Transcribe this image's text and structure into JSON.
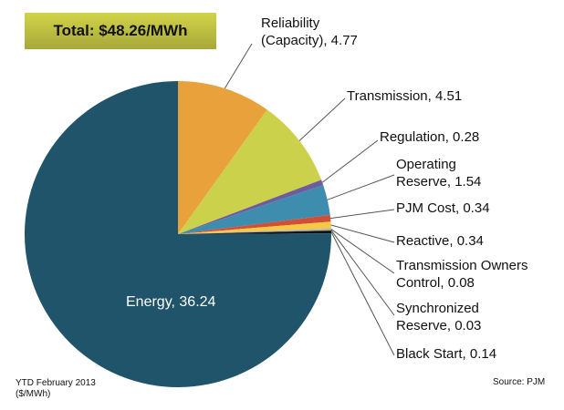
{
  "chart_data": {
    "type": "pie",
    "title": "Total: $48.26/MWh",
    "footnote": "YTD February 2013",
    "unit_note": "($/MWh)",
    "source": "Source: PJM",
    "slices": [
      {
        "label": "Reliability (Capacity)",
        "value": 4.77,
        "color": "#E9A13B",
        "text": "Reliability\n(Capacity), 4.77"
      },
      {
        "label": "Transmission",
        "value": 4.51,
        "color": "#CBD14A",
        "text": "Transmission, 4.51"
      },
      {
        "label": "Regulation",
        "value": 0.28,
        "color": "#6F5BA0",
        "text": "Regulation, 0.28"
      },
      {
        "label": "Operating Reserve",
        "value": 1.54,
        "color": "#3E8CAE",
        "text": "Operating\nReserve, 1.54"
      },
      {
        "label": "PJM Cost",
        "value": 0.34,
        "color": "#D04F35",
        "text": "PJM Cost, 0.34"
      },
      {
        "label": "Reactive",
        "value": 0.34,
        "color": "#F6C944",
        "text": "Reactive, 0.34"
      },
      {
        "label": "Transmission Owners Control",
        "value": 0.08,
        "color": "#B5B5B5",
        "text": "Transmission Owners\nControl, 0.08"
      },
      {
        "label": "Synchronized Reserve",
        "value": 0.03,
        "color": "#8A8A8A",
        "text": "Synchronized\nReserve, 0.03"
      },
      {
        "label": "Black Start",
        "value": 0.14,
        "color": "#111111",
        "text": "Black Start, 0.14"
      },
      {
        "label": "Energy",
        "value": 36.24,
        "color": "#1F546B",
        "text": "Energy, 36.24"
      }
    ]
  }
}
